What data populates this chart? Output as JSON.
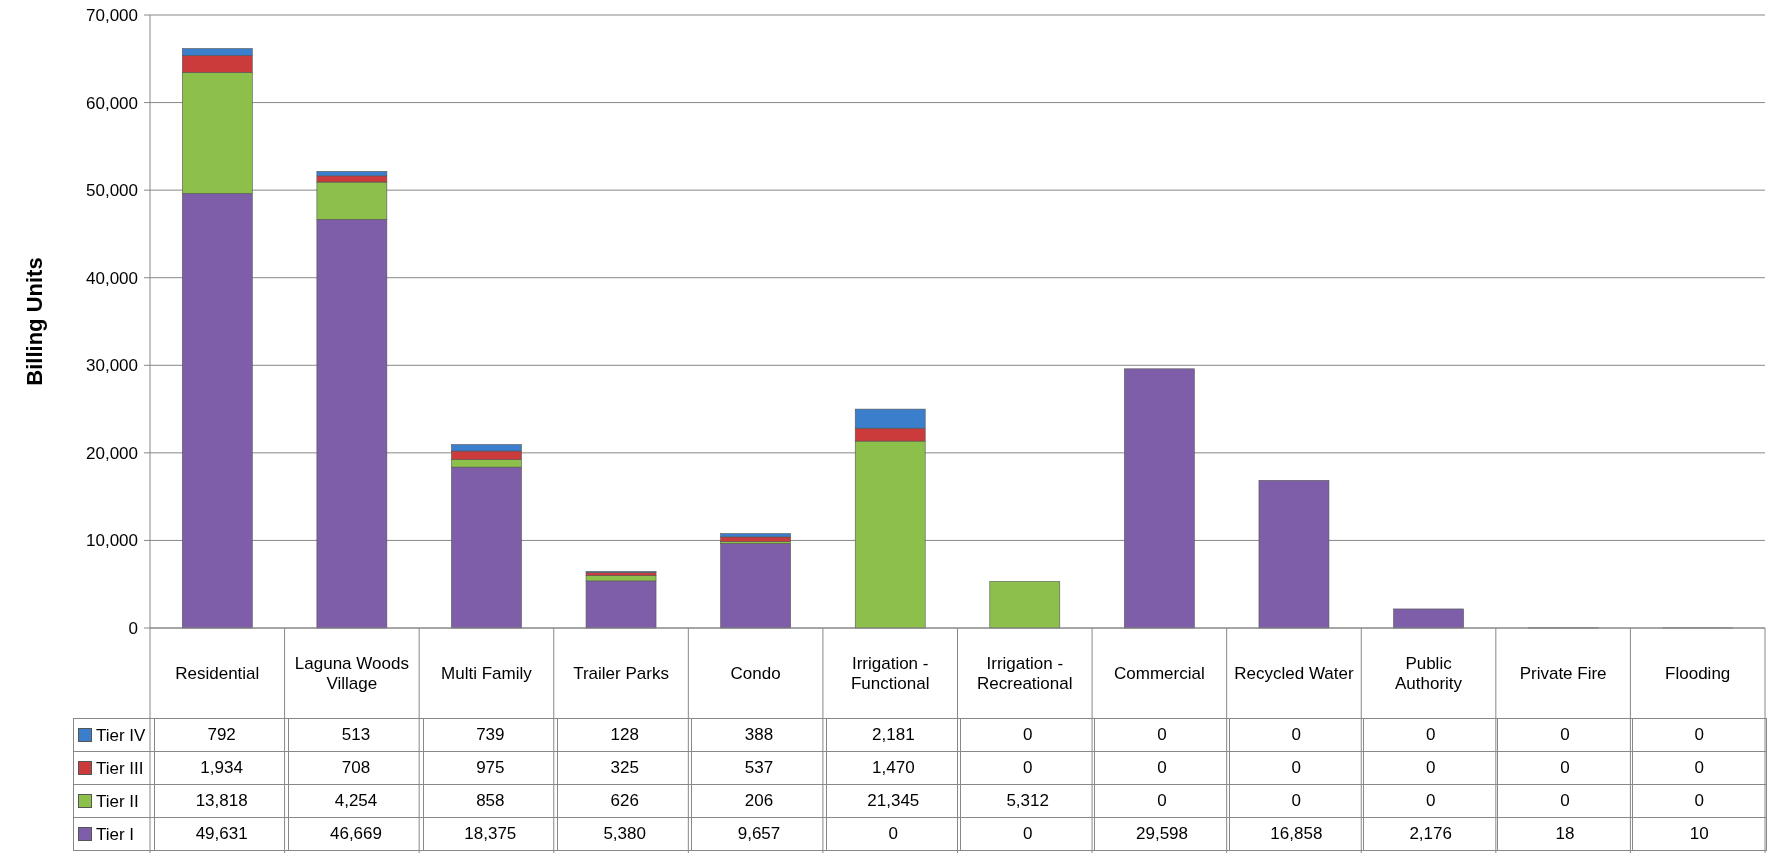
{
  "chart_data": {
    "type": "bar",
    "stacked": true,
    "ylabel": "Billing Units",
    "categories": [
      "Residential",
      "Laguna Woods Village",
      "Multi Family",
      "Trailer Parks",
      "Condo",
      "Irrigation - Functional",
      "Irrigation - Recreational",
      "Commercial",
      "Recycled Water",
      "Public Authority",
      "Private Fire",
      "Flooding"
    ],
    "series": [
      {
        "name": "Tier I",
        "color": "#7e5ea8",
        "values": [
          49631,
          46669,
          18375,
          5380,
          9657,
          0,
          0,
          29598,
          16858,
          2176,
          18,
          10
        ],
        "value_labels": [
          "49,631",
          "46,669",
          "18,375",
          "5,380",
          "9,657",
          "0",
          "0",
          "29,598",
          "16,858",
          "2,176",
          "18",
          "10"
        ]
      },
      {
        "name": "Tier II",
        "color": "#8cc04a",
        "values": [
          13818,
          4254,
          858,
          626,
          206,
          21345,
          5312,
          0,
          0,
          0,
          0,
          0
        ],
        "value_labels": [
          "13,818",
          "4,254",
          "858",
          "626",
          "206",
          "21,345",
          "5,312",
          "0",
          "0",
          "0",
          "0",
          "0"
        ]
      },
      {
        "name": "Tier III",
        "color": "#cc3b3b",
        "values": [
          1934,
          708,
          975,
          325,
          537,
          1470,
          0,
          0,
          0,
          0,
          0,
          0
        ],
        "value_labels": [
          "1,934",
          "708",
          "975",
          "325",
          "537",
          "1,470",
          "0",
          "0",
          "0",
          "0",
          "0",
          "0"
        ]
      },
      {
        "name": "Tier IV",
        "color": "#3b7fcc",
        "values": [
          792,
          513,
          739,
          128,
          388,
          2181,
          0,
          0,
          0,
          0,
          0,
          0
        ],
        "value_labels": [
          "792",
          "513",
          "739",
          "128",
          "388",
          "2,181",
          "0",
          "0",
          "0",
          "0",
          "0",
          "0"
        ]
      }
    ],
    "ylim": [
      0,
      70000
    ],
    "yticks": [
      {
        "value": 0,
        "label": "0"
      },
      {
        "value": 10000,
        "label": "10,000"
      },
      {
        "value": 20000,
        "label": "20,000"
      },
      {
        "value": 30000,
        "label": "30,000"
      },
      {
        "value": 40000,
        "label": "40,000"
      },
      {
        "value": 50000,
        "label": "50,000"
      },
      {
        "value": 60000,
        "label": "60,000"
      },
      {
        "value": 70000,
        "label": "70,000"
      }
    ],
    "grid": "y",
    "legend": "bottom"
  }
}
